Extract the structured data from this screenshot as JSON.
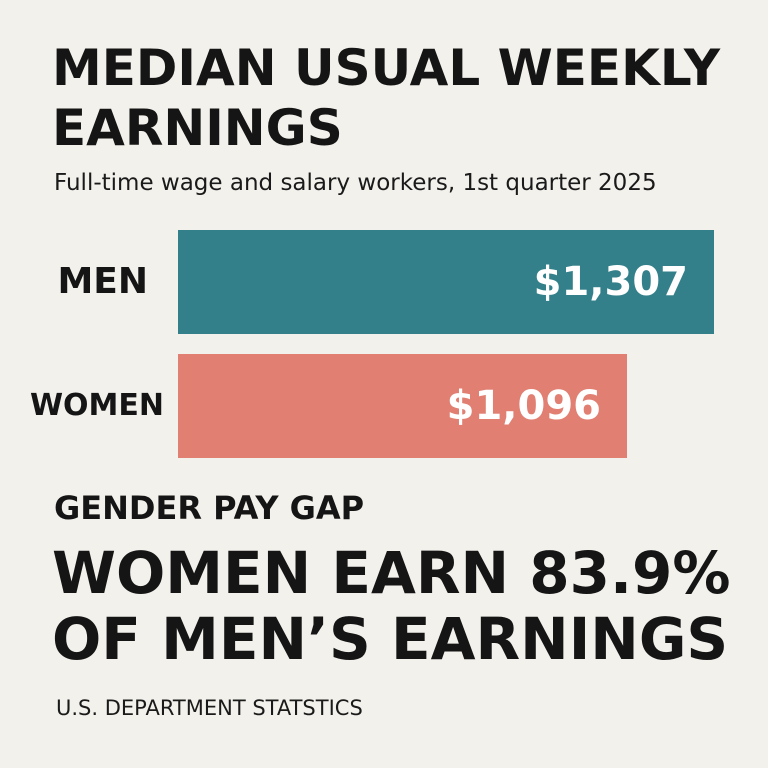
{
  "title_line1": "MEDIAN USUAL WEEKLY",
  "title_line2": "EARNINGS",
  "subtitle": "Full-time wage and salary workers, 1st quarter 2025",
  "gap_heading": "GENDER PAY GAP",
  "gap_line1": "WOMEN EARN 83.9%",
  "gap_line2": "OF MEN’S EARNINGS",
  "source": "U.S. DEPARTMENT STATSTICS",
  "colors": {
    "background": "#f3f1ec",
    "men_bar": "#33808a",
    "women_bar": "#e07f72",
    "text": "#151515"
  },
  "chart_data": {
    "type": "bar",
    "orientation": "horizontal",
    "categories": [
      "MEN",
      "WOMEN"
    ],
    "values": [
      1307,
      1096
    ],
    "value_labels": [
      "$1,307",
      "$1,096"
    ],
    "title": "MEDIAN USUAL WEEKLY EARNINGS",
    "subtitle": "Full-time wage and salary workers, 1st quarter 2025",
    "xlabel": "",
    "ylabel": "",
    "grid": false,
    "legend": "none"
  }
}
